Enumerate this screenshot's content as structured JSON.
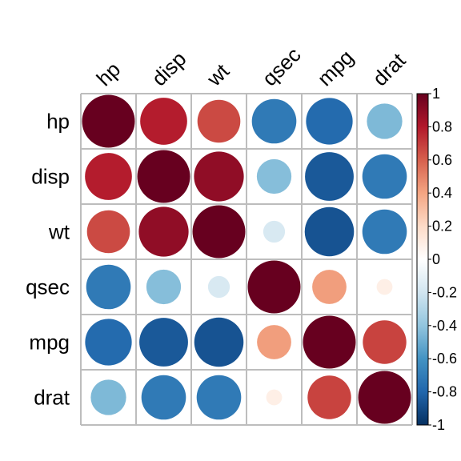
{
  "chart_data": {
    "type": "heatmap",
    "variables": [
      "hp",
      "disp",
      "wt",
      "qsec",
      "mpg",
      "drat"
    ],
    "matrix": [
      [
        1.0,
        0.79,
        0.66,
        -0.71,
        -0.78,
        -0.45
      ],
      [
        0.79,
        1.0,
        0.89,
        -0.43,
        -0.85,
        -0.71
      ],
      [
        0.66,
        0.89,
        1.0,
        -0.17,
        -0.87,
        -0.71
      ],
      [
        -0.71,
        -0.43,
        -0.17,
        1.0,
        0.42,
        0.09
      ],
      [
        -0.78,
        -0.85,
        -0.87,
        0.42,
        1.0,
        0.68
      ],
      [
        -0.45,
        -0.71,
        -0.71,
        0.09,
        0.68,
        1.0
      ]
    ],
    "colorbar": {
      "ticks": [
        "1",
        "0.8",
        "0.6",
        "0.4",
        "0.2",
        "0",
        "-0.2",
        "-0.4",
        "-0.6",
        "-0.8",
        "-1"
      ],
      "range": [
        -1,
        1
      ]
    },
    "palette": [
      "#053061",
      "#2166AC",
      "#4393C3",
      "#92C5DE",
      "#D1E5F0",
      "#FFFFFF",
      "#FDDBC7",
      "#F4A582",
      "#D6604D",
      "#B2182B",
      "#67001F"
    ]
  }
}
